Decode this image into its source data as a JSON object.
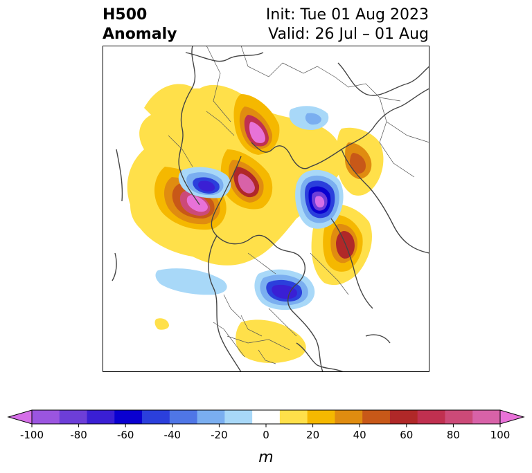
{
  "title": {
    "left_line1": "H500",
    "left_line2": "Anomaly",
    "right_line1": "Init: Tue 01 Aug 2023",
    "right_line2": "Valid: 26 Jul – 01 Aug"
  },
  "colorbar": {
    "label": "m",
    "ticks": [
      "-100",
      "-80",
      "-60",
      "-40",
      "-20",
      "0",
      "20",
      "40",
      "60",
      "80",
      "100"
    ],
    "colors": [
      "#d56fe8",
      "#9b55e0",
      "#6d3ed8",
      "#3a1fd4",
      "#0a00d0",
      "#2b3fdc",
      "#4f76e6",
      "#7aaef0",
      "#a8d8f8",
      "#ffffff",
      "#ffe04a",
      "#f5b800",
      "#e08c10",
      "#c85818",
      "#b02828",
      "#c03050",
      "#cc4a78",
      "#d862a8",
      "#e872d8"
    ]
  },
  "map": {
    "projection": "north-polar",
    "features": [
      {
        "name": "anomaly-positive-greenland",
        "sign": "positive",
        "level": 80
      },
      {
        "name": "anomaly-positive-hudson-bay-canada",
        "sign": "positive",
        "level": 100
      },
      {
        "name": "anomaly-negative-siberia-laptev",
        "sign": "negative",
        "level": -100
      },
      {
        "name": "anomaly-negative-north-atlantic",
        "sign": "negative",
        "level": -50
      },
      {
        "name": "anomaly-negative-great-lakes-east",
        "sign": "negative",
        "level": -60
      },
      {
        "name": "anomaly-positive-east-asia",
        "sign": "positive",
        "level": 60
      },
      {
        "name": "anomaly-positive-western-europe",
        "sign": "positive",
        "level": 40
      },
      {
        "name": "anomaly-positive-southeast-us",
        "sign": "positive",
        "level": 20
      }
    ]
  }
}
